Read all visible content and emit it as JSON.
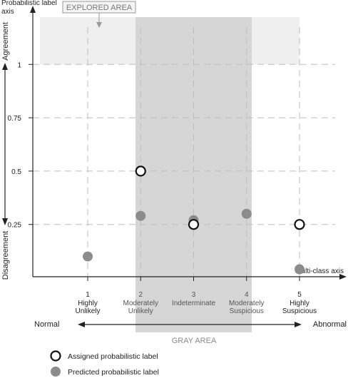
{
  "y_axis_title": "Probabilistic label axis",
  "x_axis_title": "Multi-class axis",
  "y_side_labels": {
    "top": "Agreement",
    "bottom": "Disagreement"
  },
  "explored_area_label": "EXPLORED AREA",
  "gray_area_label": "GRAY AREA",
  "extremes": {
    "left": "Normal",
    "right": "Abnormal"
  },
  "y_ticks": [
    "1",
    "0.75",
    "0.5",
    "0.25"
  ],
  "legend": {
    "assigned": "Assigned probabilistic label",
    "predicted": "Predicted probabilistic label"
  },
  "colors": {
    "explored": "#efefef",
    "gray_area": "#d6d6d6",
    "predicted": "#8c8c8c",
    "grid": "#bdbdbd"
  },
  "chart_data": {
    "type": "scatter",
    "categories": [
      {
        "num": "1",
        "lines": [
          "Highly",
          "Unlikely"
        ]
      },
      {
        "num": "2",
        "lines": [
          "Moderately",
          "Unlikely"
        ]
      },
      {
        "num": "3",
        "lines": [
          "Indeterminate"
        ]
      },
      {
        "num": "4",
        "lines": [
          "Moderately",
          "Suspicious"
        ]
      },
      {
        "num": "5",
        "lines": [
          "Highly",
          "Suspicious"
        ]
      }
    ],
    "y_ticks": [
      1,
      0.75,
      0.5,
      0.25
    ],
    "series": [
      {
        "name": "Assigned probabilistic label",
        "x": [
          2,
          3,
          5
        ],
        "y": [
          0.5,
          0.25,
          0.25
        ]
      },
      {
        "name": "Predicted probabilistic label",
        "x": [
          1,
          2,
          3,
          4,
          5
        ],
        "y": [
          0.1,
          0.29,
          0.27,
          0.3,
          0.04
        ]
      }
    ]
  }
}
